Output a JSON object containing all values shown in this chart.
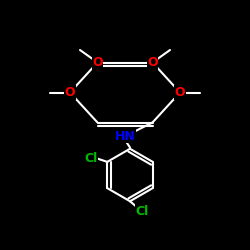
{
  "bg_color": "#000000",
  "bond_color": "#ffffff",
  "o_color": "#ff0000",
  "n_color": "#0000ff",
  "cl_color": "#00bb00",
  "lw": 1.5,
  "fs": 9,
  "fig_size": [
    2.5,
    2.5
  ],
  "dpi": 100,
  "xlim": [
    0,
    10
  ],
  "ylim": [
    0,
    10
  ]
}
